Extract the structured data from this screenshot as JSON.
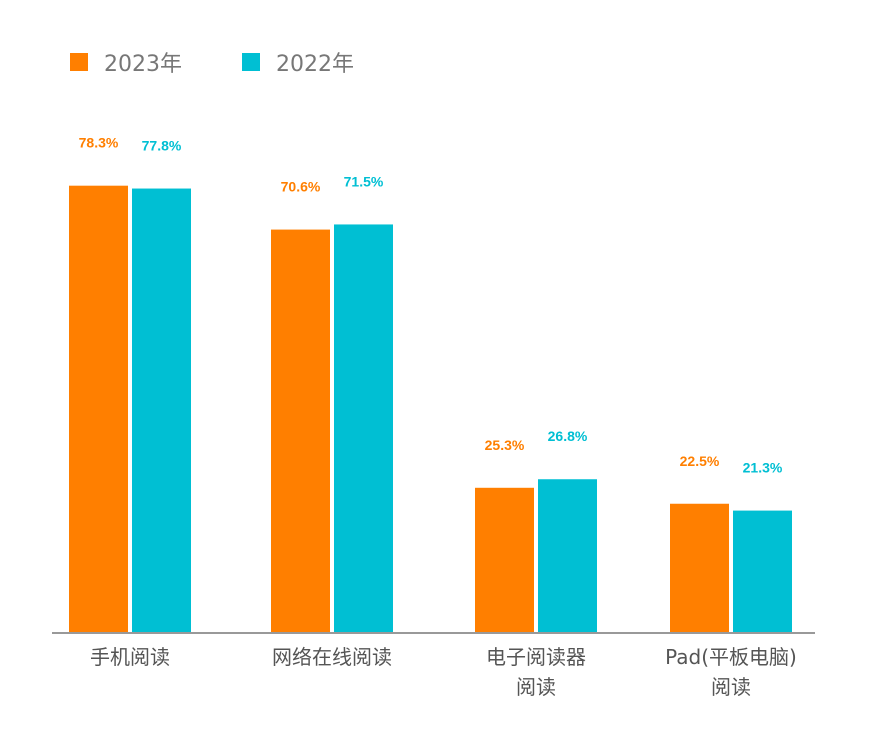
{
  "colors": {
    "series_2023": "#ff7f00",
    "series_2022": "#00bfd3",
    "axis": "#999999",
    "category_text": "#555555"
  },
  "legend": {
    "items": [
      {
        "name": "2023年",
        "color": "#ff7f00"
      },
      {
        "name": "2022年",
        "color": "#00bfd3"
      }
    ]
  },
  "chart_data": {
    "type": "bar",
    "categories": [
      [
        "手机阅读"
      ],
      [
        "网络在线阅读"
      ],
      [
        "电子阅读器",
        "阅读"
      ],
      [
        "Pad(平板电脑)",
        "阅读"
      ]
    ],
    "series": [
      {
        "name": "2023年",
        "values": [
          78.3,
          70.6,
          25.3,
          22.5
        ],
        "labels": [
          "78.3%",
          "70.6%",
          "25.3%",
          "22.5%"
        ]
      },
      {
        "name": "2022年",
        "values": [
          77.8,
          71.5,
          26.8,
          21.3
        ],
        "labels": [
          "77.8%",
          "71.5%",
          "26.8%",
          "21.3%"
        ]
      }
    ],
    "title": "",
    "xlabel": "",
    "ylabel": "",
    "ylim": [
      0,
      100
    ],
    "grid": false,
    "legend_position": "top-left"
  }
}
